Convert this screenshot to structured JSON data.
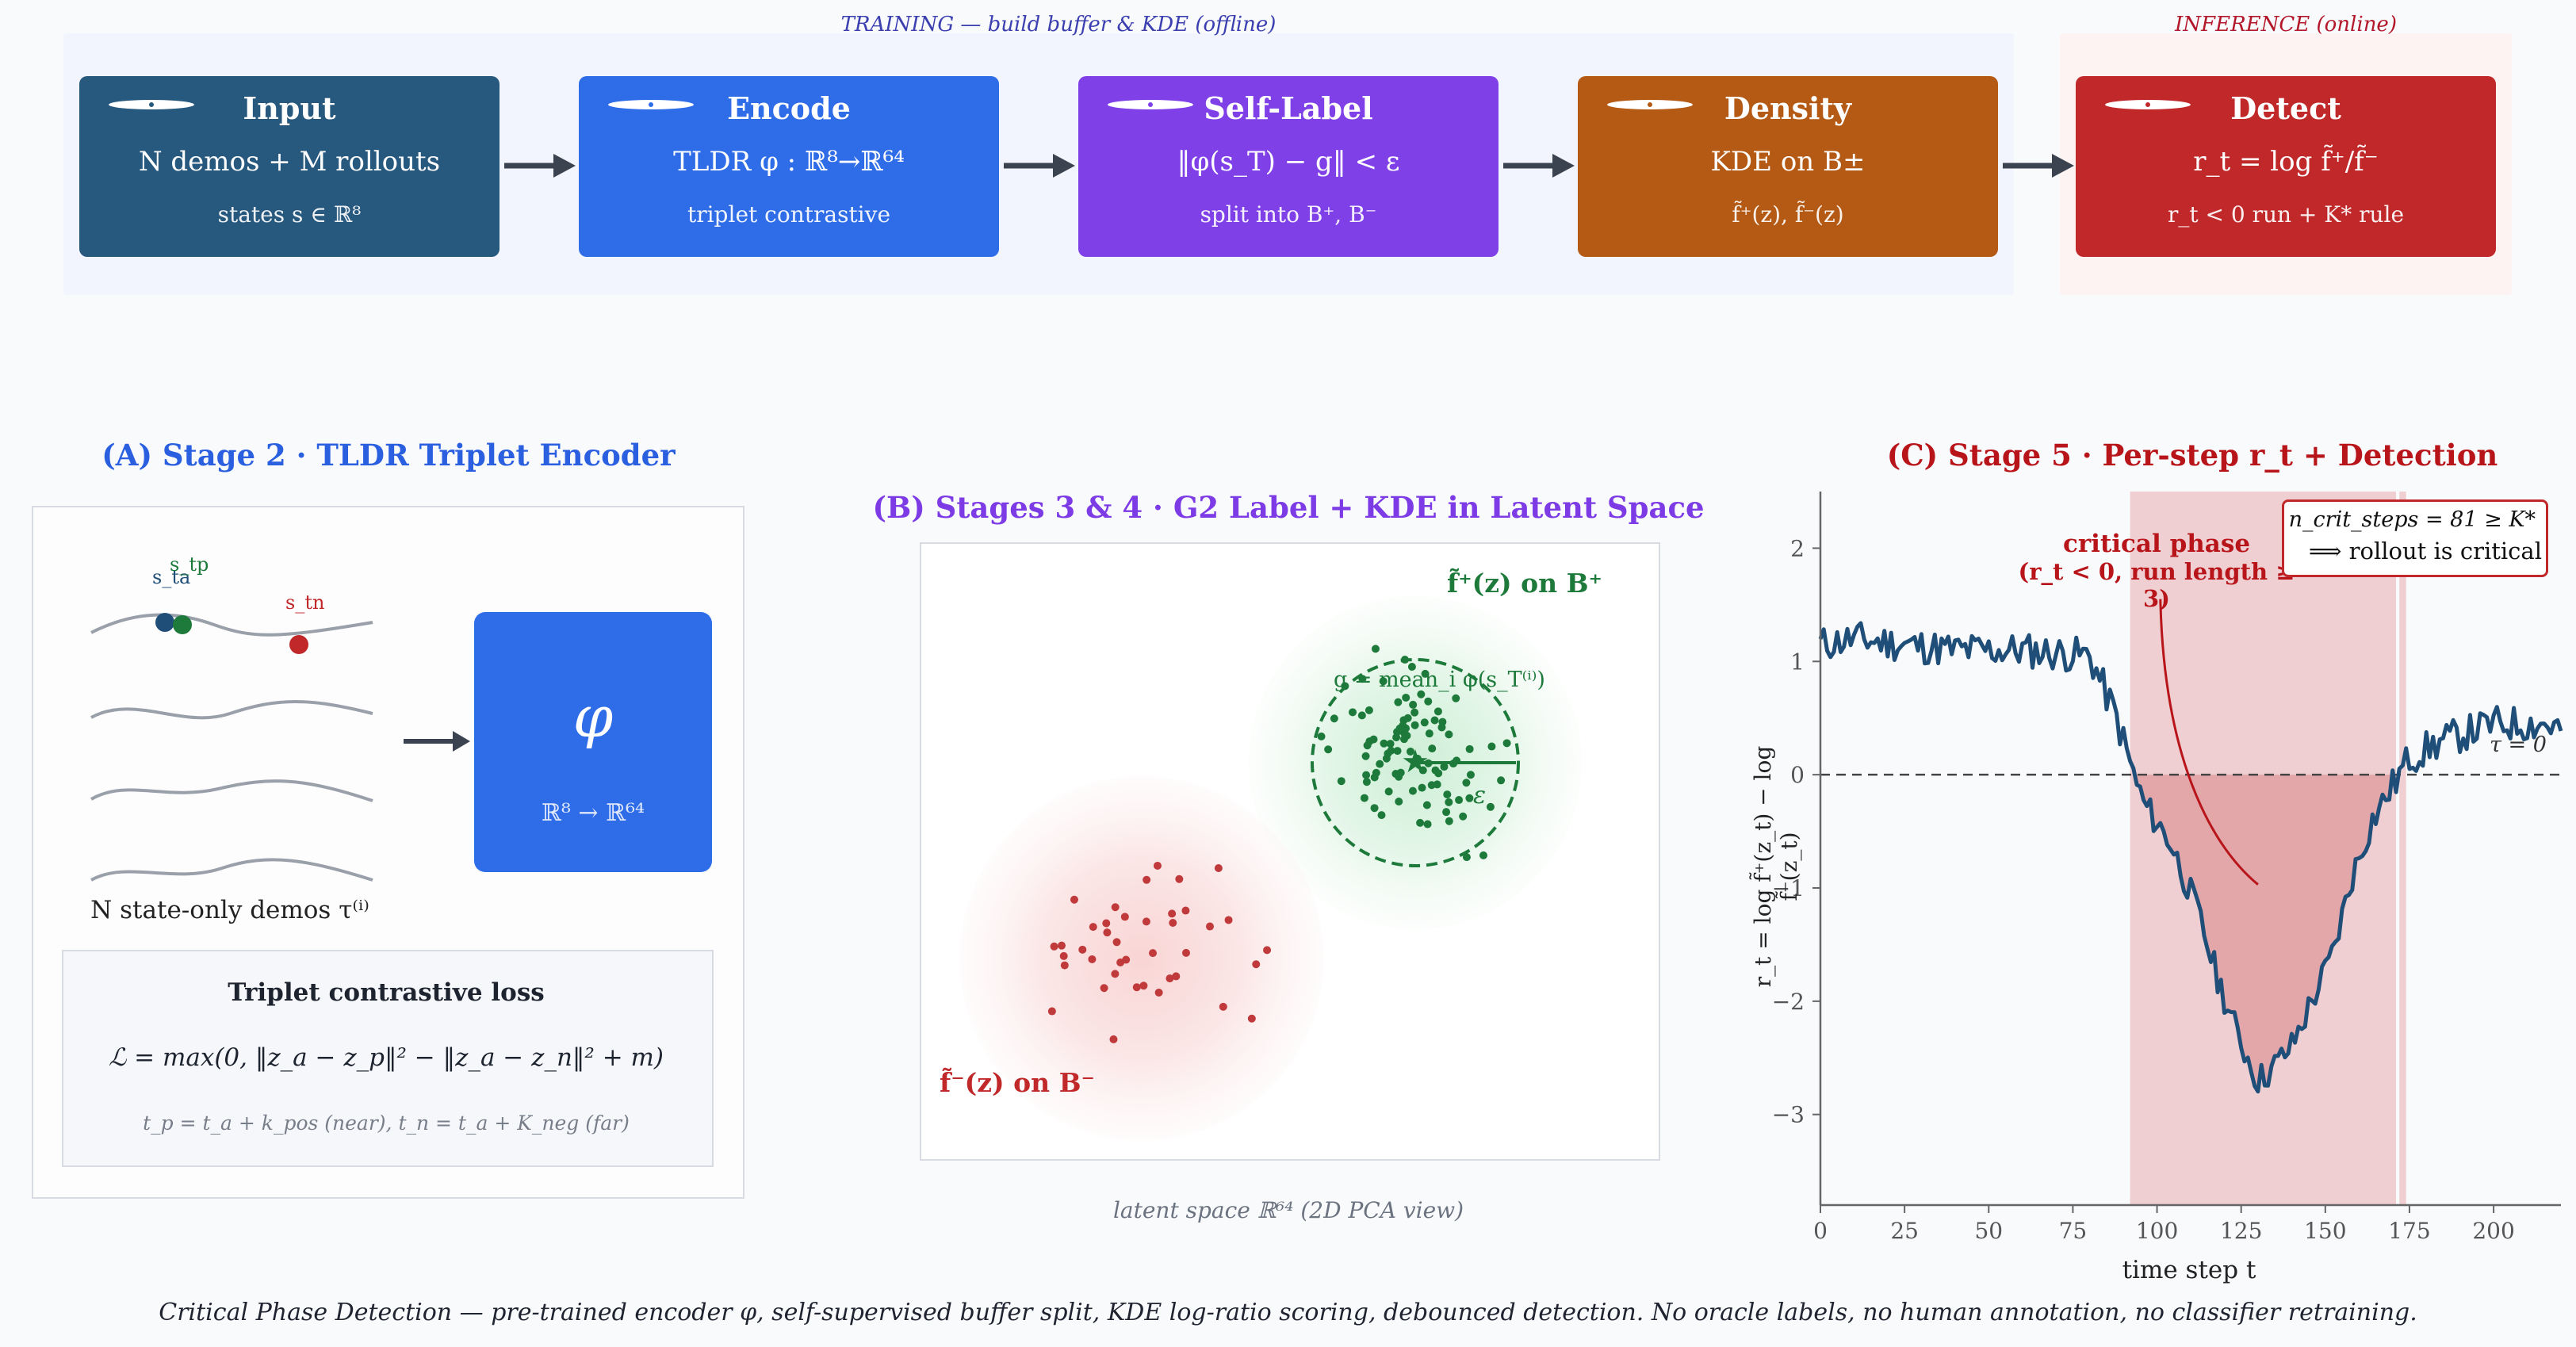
{
  "pipeline": {
    "training_label": "TRAINING — build buffer & KDE (offline)",
    "inference_label": "INFERENCE (online)",
    "stages": [
      {
        "title": "Input",
        "main": "N demos  + M rollouts",
        "sub": "states s ∈ ℝ⁸",
        "color": "#27587e"
      },
      {
        "title": "Encode",
        "main": "TLDR φ : ℝ⁸→ℝ⁶⁴",
        "sub": "triplet contrastive",
        "color": "#2f6ce8"
      },
      {
        "title": "Self-Label",
        "main": "‖φ(s_T) − g‖ < ε",
        "sub": "split into B⁺, B⁻",
        "color": "#8040e8"
      },
      {
        "title": "Density",
        "main": "KDE on B±",
        "sub": "f̃⁺(z), f̃⁻(z)",
        "color": "#b45a14"
      },
      {
        "title": "Detect",
        "main": "r_t = log f̃⁺/f̃⁻",
        "sub": "r_t < 0 run + K* rule",
        "color": "#c0282a"
      }
    ]
  },
  "panel_a": {
    "title": "(A) Stage 2 · TLDR Triplet Encoder",
    "s_a": "s_ta",
    "s_p": "s_tp",
    "s_n": "s_tn",
    "demos_caption": "N state-only demos τ⁽ⁱ⁾",
    "encoder_symbol": "φ",
    "encoder_map": "ℝ⁸ → ℝ⁶⁴",
    "loss_title": "Triplet contrastive loss",
    "loss_formula": "ℒ = max(0,  ‖z_a − z_p‖² − ‖z_a − z_n‖² + m)",
    "loss_note": "t_p = t_a + k_pos (near),    t_n = t_a + K_neg (far)"
  },
  "panel_b": {
    "title": "(B) Stages 3 & 4 · G2 Label + KDE in Latent Space",
    "f_plus_label": "f̃⁺(z)  on B⁺",
    "f_minus_label": "f̃⁻(z)  on B⁻",
    "g_label": "g = mean_i φ(s_T⁽ⁱ⁾)",
    "eps_label": "ε",
    "caption": "latent space ℝ⁶⁴ (2D PCA view)"
  },
  "panel_c": {
    "title": "(C) Stage 5 · Per-step r_t + Detection",
    "xlabel": "time step t",
    "ylabel": "r_t = log f̃⁺(z_t) − log f̃⁻(z_t)",
    "xticks": [
      "0",
      "25",
      "50",
      "75",
      "100",
      "125",
      "150",
      "175",
      "200"
    ],
    "yticks": [
      "2",
      "1",
      "0",
      "−1",
      "−2",
      "−3"
    ],
    "annotation_title": "critical phase",
    "annotation_sub": "(r_t < 0, run length ≥ 3)",
    "box_line1": "n_crit_steps = 81 ≥ K*",
    "box_line2": "⟹ rollout is critical",
    "tau_label": "τ = 0"
  },
  "footer": "Critical Phase Detection — pre-trained encoder φ, self-supervised buffer split, KDE log-ratio scoring, debounced detection. No oracle labels, no human annotation, no classifier retraining.",
  "colors": {
    "blue_title": "#2a5fe0",
    "purple_title": "#7d3be6",
    "red_title": "#b8151b",
    "series": "#1f4e79",
    "green": "#1d7a3a",
    "red_pts": "#c0393b"
  },
  "chart_data": {
    "type": "line",
    "xlim": [
      0,
      220
    ],
    "ylim": [
      -3.8,
      2.5
    ],
    "xlabel": "time step t",
    "ylabel": "r_t = log f̃⁺(z_t) − log f̃⁻(z_t)",
    "threshold": 0,
    "critical_span": [
      92,
      171
    ],
    "second_span": [
      172,
      174
    ],
    "keypoints": [
      [
        0,
        1.15
      ],
      [
        10,
        1.2
      ],
      [
        40,
        1.1
      ],
      [
        60,
        1.1
      ],
      [
        80,
        1.05
      ],
      [
        88,
        0.5
      ],
      [
        92,
        0.1
      ],
      [
        96,
        -0.25
      ],
      [
        104,
        -0.6
      ],
      [
        112,
        -1.2
      ],
      [
        118,
        -1.8
      ],
      [
        124,
        -2.3
      ],
      [
        130,
        -2.7
      ],
      [
        134,
        -2.6
      ],
      [
        140,
        -2.4
      ],
      [
        146,
        -2.0
      ],
      [
        152,
        -1.6
      ],
      [
        158,
        -0.9
      ],
      [
        164,
        -0.4
      ],
      [
        170,
        -0.1
      ],
      [
        175,
        0.15
      ],
      [
        185,
        0.3
      ],
      [
        200,
        0.45
      ],
      [
        215,
        0.45
      ],
      [
        220,
        0.4
      ]
    ]
  }
}
